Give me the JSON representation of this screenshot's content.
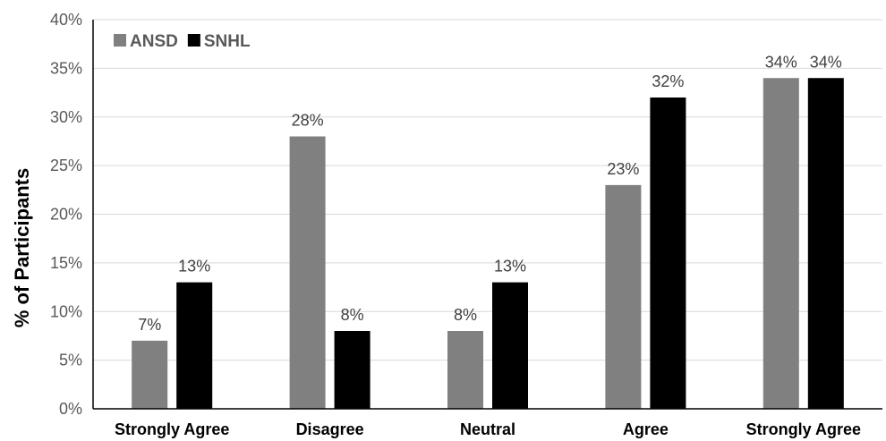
{
  "chart_data": {
    "type": "bar",
    "title": "",
    "xlabel": "",
    "ylabel": "% of Participants",
    "ylim": [
      0,
      40
    ],
    "y_ticks": [
      "0%",
      "5%",
      "10%",
      "15%",
      "20%",
      "25%",
      "30%",
      "35%",
      "40%"
    ],
    "y_tick_values": [
      0,
      5,
      10,
      15,
      20,
      25,
      30,
      35,
      40
    ],
    "grid": true,
    "legend_position": "top-left",
    "categories": [
      "Strongly Agree",
      "Disagree",
      "Neutral",
      "Agree",
      "Strongly Agree"
    ],
    "series": [
      {
        "name": "ANSD",
        "color": "#808080",
        "values": [
          7,
          28,
          8,
          23,
          34
        ],
        "labels": [
          "7%",
          "28%",
          "8%",
          "23%",
          "34%"
        ]
      },
      {
        "name": "SNHL",
        "color": "#000000",
        "values": [
          13,
          8,
          13,
          32,
          34
        ],
        "labels": [
          "13%",
          "8%",
          "13%",
          "32%",
          "34%"
        ]
      }
    ]
  }
}
